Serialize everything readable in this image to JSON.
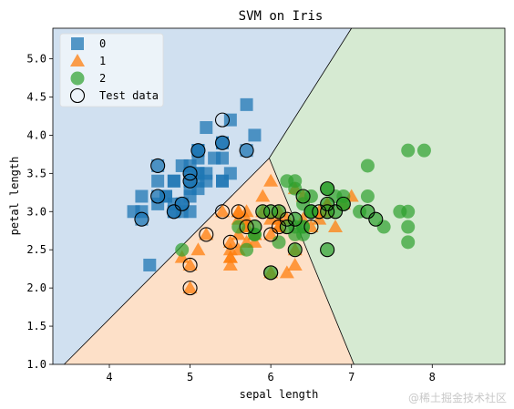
{
  "chart_data": {
    "type": "scatter",
    "title": "SVM on Iris",
    "xlabel": "sepal length",
    "ylabel": "petal length",
    "xlim": [
      3.3,
      8.9
    ],
    "ylim": [
      1.0,
      5.4
    ],
    "xticks": [
      4,
      5,
      6,
      7,
      8
    ],
    "yticks": [
      1.0,
      1.5,
      2.0,
      2.5,
      3.0,
      3.5,
      4.0,
      4.5,
      5.0
    ],
    "legend_position": "top-left",
    "regions": [
      {
        "class": "0",
        "color": "#d0e0f0"
      },
      {
        "class": "1",
        "color": "#fde0c8"
      },
      {
        "class": "2",
        "color": "#d6ead2"
      }
    ],
    "series": [
      {
        "name": "0",
        "marker": "square",
        "color": "#1f77b4",
        "points": [
          [
            5.1,
            3.5
          ],
          [
            4.9,
            3.0
          ],
          [
            4.7,
            3.2
          ],
          [
            4.6,
            3.1
          ],
          [
            5.0,
            3.6
          ],
          [
            5.4,
            3.9
          ],
          [
            4.6,
            3.4
          ],
          [
            5.0,
            3.4
          ],
          [
            4.4,
            2.9
          ],
          [
            4.9,
            3.1
          ],
          [
            5.4,
            3.7
          ],
          [
            4.8,
            3.4
          ],
          [
            4.8,
            3.0
          ],
          [
            4.3,
            3.0
          ],
          [
            5.8,
            4.0
          ],
          [
            5.7,
            4.4
          ],
          [
            5.4,
            3.9
          ],
          [
            5.1,
            3.5
          ],
          [
            5.7,
            3.8
          ],
          [
            5.1,
            3.8
          ],
          [
            5.4,
            3.4
          ],
          [
            5.1,
            3.7
          ],
          [
            4.6,
            3.6
          ],
          [
            5.1,
            3.3
          ],
          [
            4.8,
            3.4
          ],
          [
            5.0,
            3.0
          ],
          [
            5.0,
            3.4
          ],
          [
            5.2,
            3.5
          ],
          [
            5.2,
            3.4
          ],
          [
            4.7,
            3.2
          ],
          [
            4.8,
            3.1
          ],
          [
            5.4,
            3.4
          ],
          [
            5.2,
            4.1
          ],
          [
            5.5,
            4.2
          ],
          [
            4.9,
            3.1
          ],
          [
            5.0,
            3.2
          ],
          [
            5.5,
            3.5
          ],
          [
            4.9,
            3.6
          ],
          [
            4.4,
            3.0
          ],
          [
            5.1,
            3.4
          ],
          [
            5.0,
            3.5
          ],
          [
            4.5,
            2.3
          ],
          [
            4.4,
            3.2
          ],
          [
            5.0,
            3.5
          ],
          [
            5.1,
            3.8
          ],
          [
            4.8,
            3.0
          ],
          [
            5.1,
            3.8
          ],
          [
            4.6,
            3.2
          ],
          [
            5.3,
            3.7
          ],
          [
            5.0,
            3.3
          ]
        ]
      },
      {
        "name": "1",
        "marker": "triangle",
        "color": "#ff7f0e",
        "points": [
          [
            7.0,
            3.2
          ],
          [
            6.4,
            3.2
          ],
          [
            6.9,
            3.1
          ],
          [
            5.5,
            2.3
          ],
          [
            6.5,
            2.8
          ],
          [
            5.7,
            2.8
          ],
          [
            6.3,
            3.3
          ],
          [
            4.9,
            2.4
          ],
          [
            6.6,
            2.9
          ],
          [
            5.2,
            2.7
          ],
          [
            5.0,
            2.0
          ],
          [
            5.9,
            3.0
          ],
          [
            6.0,
            2.2
          ],
          [
            6.1,
            2.9
          ],
          [
            5.6,
            2.9
          ],
          [
            6.7,
            3.1
          ],
          [
            5.6,
            3.0
          ],
          [
            5.8,
            2.7
          ],
          [
            6.2,
            2.2
          ],
          [
            5.6,
            2.5
          ],
          [
            5.9,
            3.2
          ],
          [
            6.1,
            2.8
          ],
          [
            6.3,
            2.5
          ],
          [
            6.1,
            2.8
          ],
          [
            6.4,
            2.9
          ],
          [
            6.6,
            3.0
          ],
          [
            6.8,
            2.8
          ],
          [
            6.7,
            3.0
          ],
          [
            6.0,
            2.9
          ],
          [
            5.7,
            2.6
          ],
          [
            5.5,
            2.4
          ],
          [
            5.5,
            2.4
          ],
          [
            5.8,
            2.7
          ],
          [
            6.0,
            2.7
          ],
          [
            5.4,
            3.0
          ],
          [
            6.0,
            3.4
          ],
          [
            6.7,
            3.1
          ],
          [
            6.3,
            2.3
          ],
          [
            5.6,
            3.0
          ],
          [
            5.5,
            2.5
          ],
          [
            5.5,
            2.6
          ],
          [
            6.1,
            3.0
          ],
          [
            5.8,
            2.6
          ],
          [
            5.0,
            2.3
          ],
          [
            5.6,
            2.7
          ],
          [
            5.7,
            3.0
          ],
          [
            5.7,
            2.9
          ],
          [
            6.2,
            2.9
          ],
          [
            5.1,
            2.5
          ],
          [
            5.7,
            2.8
          ]
        ]
      },
      {
        "name": "2",
        "marker": "circle",
        "color": "#2ca02c",
        "points": [
          [
            6.3,
            3.3
          ],
          [
            5.8,
            2.7
          ],
          [
            7.1,
            3.0
          ],
          [
            6.3,
            2.9
          ],
          [
            6.5,
            3.0
          ],
          [
            7.6,
            3.0
          ],
          [
            4.9,
            2.5
          ],
          [
            7.3,
            2.9
          ],
          [
            6.7,
            2.5
          ],
          [
            7.2,
            3.6
          ],
          [
            6.5,
            3.2
          ],
          [
            6.4,
            2.7
          ],
          [
            6.8,
            3.0
          ],
          [
            5.7,
            2.5
          ],
          [
            5.8,
            2.8
          ],
          [
            6.4,
            3.2
          ],
          [
            6.5,
            3.0
          ],
          [
            7.7,
            3.8
          ],
          [
            7.7,
            2.6
          ],
          [
            6.0,
            2.2
          ],
          [
            6.9,
            3.2
          ],
          [
            5.6,
            2.8
          ],
          [
            7.7,
            2.8
          ],
          [
            6.3,
            2.7
          ],
          [
            6.7,
            3.3
          ],
          [
            7.2,
            3.2
          ],
          [
            6.2,
            2.8
          ],
          [
            6.1,
            3.0
          ],
          [
            6.4,
            2.8
          ],
          [
            7.2,
            3.0
          ],
          [
            7.4,
            2.8
          ],
          [
            7.9,
            3.8
          ],
          [
            6.4,
            2.8
          ],
          [
            6.3,
            2.8
          ],
          [
            6.1,
            2.6
          ],
          [
            7.7,
            3.0
          ],
          [
            6.3,
            3.4
          ],
          [
            6.4,
            3.1
          ],
          [
            6.0,
            3.0
          ],
          [
            6.9,
            3.1
          ],
          [
            6.7,
            3.1
          ],
          [
            6.9,
            3.1
          ],
          [
            5.8,
            2.7
          ],
          [
            6.8,
            3.2
          ],
          [
            6.7,
            3.3
          ],
          [
            6.7,
            3.0
          ],
          [
            6.3,
            2.5
          ],
          [
            6.5,
            3.0
          ],
          [
            6.2,
            3.4
          ],
          [
            5.9,
            3.0
          ]
        ]
      },
      {
        "name": "Test data",
        "marker": "hollow-circle",
        "color": "#000000",
        "points": [
          [
            4.4,
            2.9
          ],
          [
            4.6,
            3.6
          ],
          [
            5.0,
            3.5
          ],
          [
            5.0,
            3.4
          ],
          [
            5.1,
            3.8
          ],
          [
            5.4,
            3.9
          ],
          [
            5.4,
            4.2
          ],
          [
            5.7,
            3.8
          ],
          [
            4.9,
            3.1
          ],
          [
            4.8,
            3.0
          ],
          [
            4.6,
            3.2
          ],
          [
            5.0,
            2.3
          ],
          [
            5.0,
            2.0
          ],
          [
            5.2,
            2.7
          ],
          [
            5.4,
            3.0
          ],
          [
            5.5,
            2.6
          ],
          [
            5.6,
            3.0
          ],
          [
            5.7,
            2.8
          ],
          [
            5.8,
            2.8
          ],
          [
            6.0,
            2.2
          ],
          [
            6.0,
            3.0
          ],
          [
            6.0,
            2.7
          ],
          [
            6.1,
            2.8
          ],
          [
            6.2,
            2.8
          ],
          [
            6.2,
            2.9
          ],
          [
            6.3,
            2.5
          ],
          [
            6.3,
            2.9
          ],
          [
            6.5,
            3.0
          ],
          [
            6.7,
            3.1
          ],
          [
            6.7,
            3.3
          ],
          [
            6.8,
            3.0
          ],
          [
            6.9,
            3.1
          ],
          [
            7.2,
            3.0
          ],
          [
            6.4,
            3.2
          ],
          [
            6.7,
            2.5
          ],
          [
            5.9,
            3.0
          ],
          [
            6.1,
            3.0
          ],
          [
            6.6,
            3.0
          ],
          [
            6.7,
            3.0
          ],
          [
            6.0,
            2.2
          ],
          [
            6.5,
            2.8
          ],
          [
            7.3,
            2.9
          ]
        ]
      }
    ]
  },
  "watermark": "@稀土掘金技术社区"
}
